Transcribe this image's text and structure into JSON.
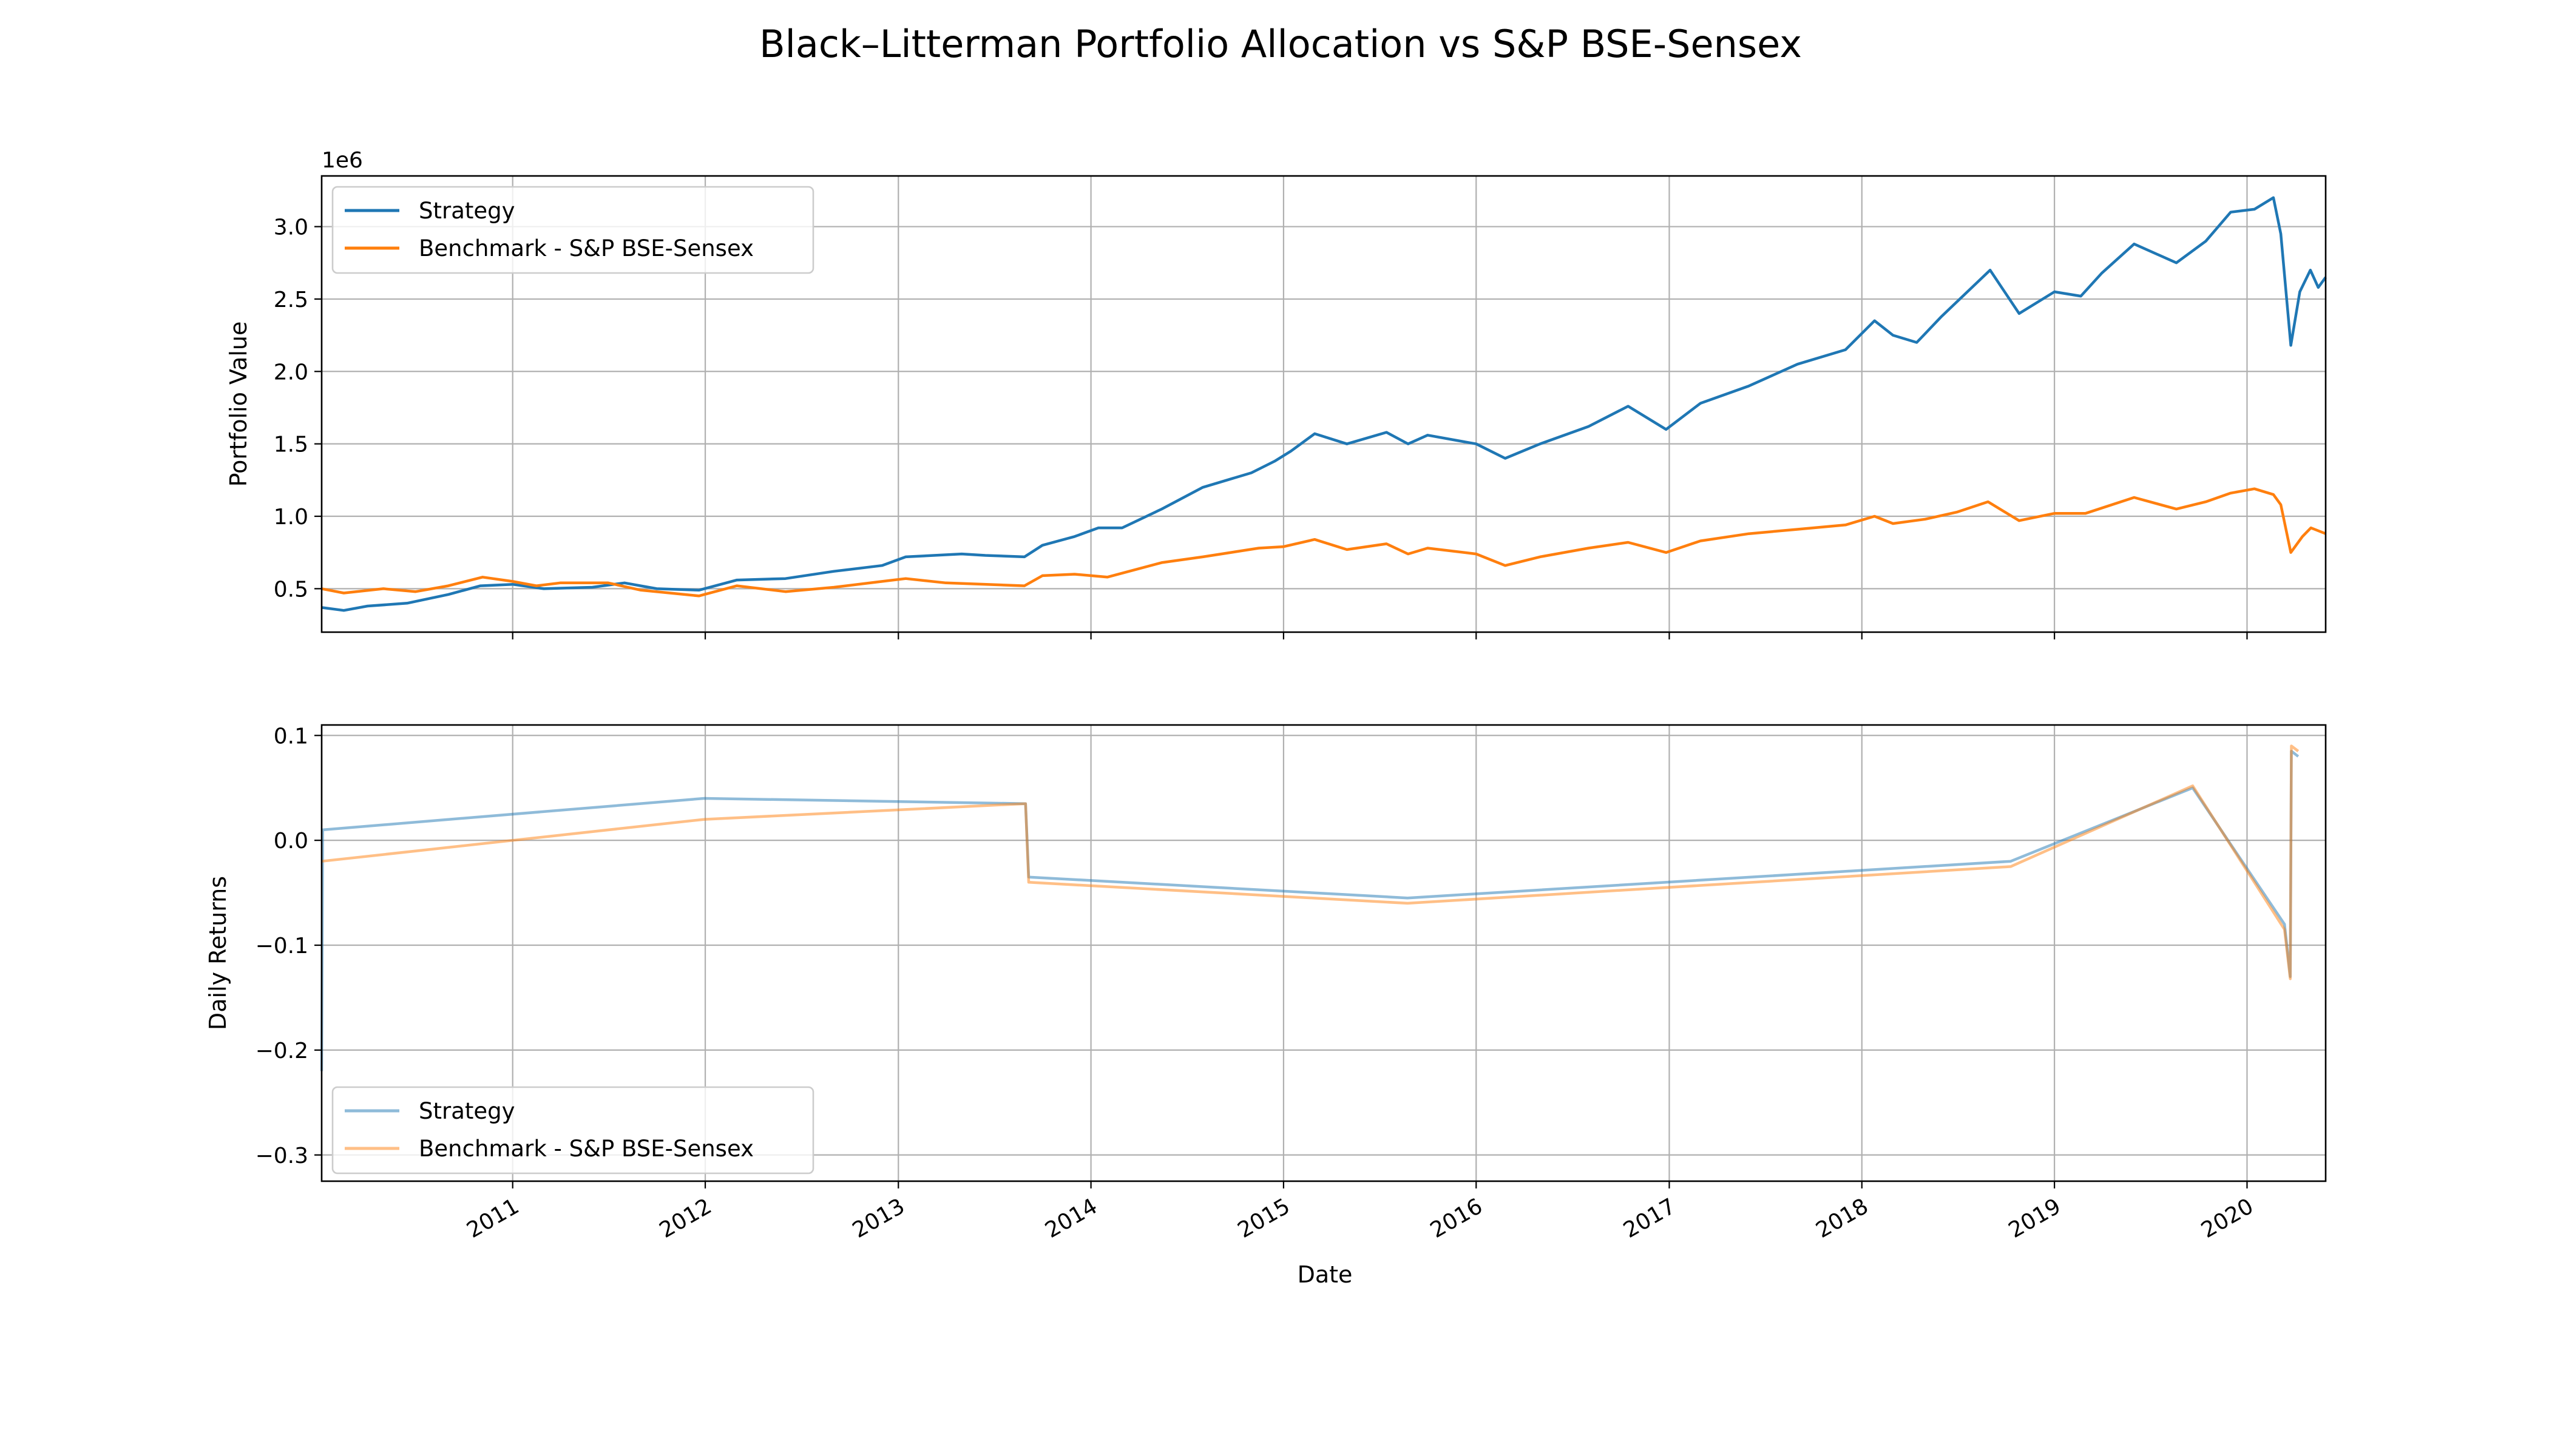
{
  "figure": {
    "title": "Black–Litterman Portfolio Allocation vs S&P BSE-Sensex"
  },
  "colors": {
    "strategy": "#1f77b4",
    "benchmark": "#ff7f0e",
    "grid": "#b0b0b0",
    "axes": "#000000"
  },
  "chart_data": [
    {
      "type": "line",
      "name": "portfolio-value",
      "ylabel": "Portfolio Value",
      "xlabel": "",
      "offset_label": "1e6",
      "xlim": [
        "2010-01-04",
        "2020-05-29"
      ],
      "ylim": [
        0.2,
        3.35
      ],
      "yticks": [
        0.5,
        1.0,
        1.5,
        2.0,
        2.5,
        3.0
      ],
      "ytick_labels": [
        "0.5",
        "1.0",
        "1.5",
        "2.0",
        "2.5",
        "3.0"
      ],
      "grid": true,
      "legend_position": "upper left",
      "series": [
        {
          "name": "Strategy",
          "color": "#1f77b4",
          "alpha": 1.0,
          "points": [
            [
              "2010-01-04",
              0.37
            ],
            [
              "2010-02-15",
              0.35
            ],
            [
              "2010-04-01",
              0.38
            ],
            [
              "2010-06-15",
              0.4
            ],
            [
              "2010-09-01",
              0.46
            ],
            [
              "2010-11-01",
              0.52
            ],
            [
              "2011-01-01",
              0.53
            ],
            [
              "2011-03-01",
              0.5
            ],
            [
              "2011-06-01",
              0.51
            ],
            [
              "2011-08-01",
              0.54
            ],
            [
              "2011-10-01",
              0.5
            ],
            [
              "2011-12-20",
              0.49
            ],
            [
              "2012-03-01",
              0.56
            ],
            [
              "2012-06-01",
              0.57
            ],
            [
              "2012-09-01",
              0.62
            ],
            [
              "2012-12-01",
              0.66
            ],
            [
              "2013-01-15",
              0.72
            ],
            [
              "2013-05-01",
              0.74
            ],
            [
              "2013-06-15",
              0.73
            ],
            [
              "2013-08-28",
              0.72
            ],
            [
              "2013-10-01",
              0.8
            ],
            [
              "2013-12-01",
              0.86
            ],
            [
              "2014-01-15",
              0.92
            ],
            [
              "2014-03-01",
              0.92
            ],
            [
              "2014-05-15",
              1.05
            ],
            [
              "2014-08-01",
              1.2
            ],
            [
              "2014-11-01",
              1.3
            ],
            [
              "2014-12-15",
              1.38
            ],
            [
              "2015-01-15",
              1.45
            ],
            [
              "2015-03-01",
              1.57
            ],
            [
              "2015-05-01",
              1.5
            ],
            [
              "2015-07-15",
              1.58
            ],
            [
              "2015-08-25",
              1.5
            ],
            [
              "2015-10-01",
              1.56
            ],
            [
              "2016-01-01",
              1.5
            ],
            [
              "2016-02-25",
              1.4
            ],
            [
              "2016-05-01",
              1.5
            ],
            [
              "2016-08-01",
              1.62
            ],
            [
              "2016-10-15",
              1.76
            ],
            [
              "2016-12-26",
              1.6
            ],
            [
              "2017-03-01",
              1.78
            ],
            [
              "2017-06-01",
              1.9
            ],
            [
              "2017-09-01",
              2.05
            ],
            [
              "2017-12-01",
              2.15
            ],
            [
              "2018-01-25",
              2.35
            ],
            [
              "2018-03-01",
              2.25
            ],
            [
              "2018-04-15",
              2.2
            ],
            [
              "2018-06-01",
              2.38
            ],
            [
              "2018-09-01",
              2.7
            ],
            [
              "2018-10-26",
              2.4
            ],
            [
              "2019-01-01",
              2.55
            ],
            [
              "2019-02-20",
              2.52
            ],
            [
              "2019-04-01",
              2.68
            ],
            [
              "2019-06-01",
              2.88
            ],
            [
              "2019-08-20",
              2.75
            ],
            [
              "2019-10-15",
              2.9
            ],
            [
              "2019-12-01",
              3.1
            ],
            [
              "2020-01-15",
              3.12
            ],
            [
              "2020-02-20",
              3.2
            ],
            [
              "2020-03-05",
              2.95
            ],
            [
              "2020-03-24",
              2.18
            ],
            [
              "2020-04-10",
              2.55
            ],
            [
              "2020-04-30",
              2.7
            ],
            [
              "2020-05-15",
              2.58
            ],
            [
              "2020-05-29",
              2.65
            ]
          ]
        },
        {
          "name": "Benchmark - S&P BSE-Sensex",
          "color": "#ff7f0e",
          "alpha": 1.0,
          "points": [
            [
              "2010-01-04",
              0.5
            ],
            [
              "2010-02-15",
              0.47
            ],
            [
              "2010-05-01",
              0.5
            ],
            [
              "2010-07-01",
              0.48
            ],
            [
              "2010-09-01",
              0.52
            ],
            [
              "2010-11-05",
              0.58
            ],
            [
              "2011-01-01",
              0.55
            ],
            [
              "2011-02-15",
              0.52
            ],
            [
              "2011-04-01",
              0.54
            ],
            [
              "2011-07-01",
              0.54
            ],
            [
              "2011-09-01",
              0.49
            ],
            [
              "2011-12-20",
              0.45
            ],
            [
              "2012-03-01",
              0.52
            ],
            [
              "2012-06-01",
              0.48
            ],
            [
              "2012-09-01",
              0.51
            ],
            [
              "2012-12-01",
              0.55
            ],
            [
              "2013-01-15",
              0.57
            ],
            [
              "2013-04-01",
              0.54
            ],
            [
              "2013-08-28",
              0.52
            ],
            [
              "2013-10-01",
              0.59
            ],
            [
              "2013-12-01",
              0.6
            ],
            [
              "2014-02-01",
              0.58
            ],
            [
              "2014-05-15",
              0.68
            ],
            [
              "2014-08-01",
              0.72
            ],
            [
              "2014-11-15",
              0.78
            ],
            [
              "2015-01-01",
              0.79
            ],
            [
              "2015-03-01",
              0.84
            ],
            [
              "2015-05-01",
              0.77
            ],
            [
              "2015-07-15",
              0.81
            ],
            [
              "2015-08-25",
              0.74
            ],
            [
              "2015-10-01",
              0.78
            ],
            [
              "2016-01-01",
              0.74
            ],
            [
              "2016-02-25",
              0.66
            ],
            [
              "2016-05-01",
              0.72
            ],
            [
              "2016-08-01",
              0.78
            ],
            [
              "2016-10-15",
              0.82
            ],
            [
              "2016-12-26",
              0.75
            ],
            [
              "2017-03-01",
              0.83
            ],
            [
              "2017-06-01",
              0.88
            ],
            [
              "2017-09-01",
              0.91
            ],
            [
              "2017-12-01",
              0.94
            ],
            [
              "2018-01-25",
              1.0
            ],
            [
              "2018-03-01",
              0.95
            ],
            [
              "2018-05-01",
              0.98
            ],
            [
              "2018-07-01",
              1.03
            ],
            [
              "2018-08-28",
              1.1
            ],
            [
              "2018-10-26",
              0.97
            ],
            [
              "2019-01-01",
              1.02
            ],
            [
              "2019-03-01",
              1.02
            ],
            [
              "2019-06-01",
              1.13
            ],
            [
              "2019-08-20",
              1.05
            ],
            [
              "2019-10-15",
              1.1
            ],
            [
              "2019-12-01",
              1.16
            ],
            [
              "2020-01-15",
              1.19
            ],
            [
              "2020-02-20",
              1.15
            ],
            [
              "2020-03-05",
              1.08
            ],
            [
              "2020-03-24",
              0.75
            ],
            [
              "2020-04-15",
              0.86
            ],
            [
              "2020-05-01",
              0.92
            ],
            [
              "2020-05-29",
              0.88
            ]
          ]
        }
      ]
    },
    {
      "type": "line",
      "name": "daily-returns",
      "ylabel": "Daily Returns",
      "xlabel": "Date",
      "xlim": [
        "2010-01-04",
        "2020-05-29"
      ],
      "ylim": [
        -0.325,
        0.11
      ],
      "yticks": [
        -0.3,
        -0.2,
        -0.1,
        0.0,
        0.1
      ],
      "ytick_labels": [
        "−0.3",
        "−0.2",
        "−0.1",
        "0.0",
        "0.1"
      ],
      "xticks": [
        "2011-01-01",
        "2012-01-01",
        "2013-01-01",
        "2014-01-01",
        "2015-01-01",
        "2016-01-01",
        "2017-01-01",
        "2018-01-01",
        "2019-01-01",
        "2020-01-01"
      ],
      "xtick_labels": [
        "2011",
        "2012",
        "2013",
        "2014",
        "2015",
        "2016",
        "2017",
        "2018",
        "2019",
        "2020"
      ],
      "grid": true,
      "legend_position": "lower left",
      "series": [
        {
          "name": "Strategy",
          "color": "#1f77b4",
          "alpha": 0.5,
          "points": [
            [
              "2010-01-04",
              -0.22
            ],
            [
              "2010-01-06",
              0.01
            ],
            [
              "2011-12-30",
              0.04
            ],
            [
              "2013-08-30",
              0.035
            ],
            [
              "2013-09-05",
              -0.035
            ],
            [
              "2015-08-24",
              -0.055
            ],
            [
              "2018-10-10",
              -0.02
            ],
            [
              "2019-09-20",
              0.05
            ],
            [
              "2020-03-12",
              -0.08
            ],
            [
              "2020-03-23",
              -0.13
            ],
            [
              "2020-03-25",
              0.085
            ],
            [
              "2020-04-07",
              0.08
            ]
          ]
        },
        {
          "name": "Benchmark - S&P BSE-Sensex",
          "color": "#ff7f0e",
          "alpha": 0.5,
          "points": [
            [
              "2010-01-04",
              -0.02
            ],
            [
              "2011-12-30",
              0.02
            ],
            [
              "2013-08-30",
              0.035
            ],
            [
              "2013-09-05",
              -0.04
            ],
            [
              "2015-08-24",
              -0.06
            ],
            [
              "2018-10-10",
              -0.025
            ],
            [
              "2019-09-20",
              0.052
            ],
            [
              "2020-03-12",
              -0.085
            ],
            [
              "2020-03-23",
              -0.132
            ],
            [
              "2020-03-25",
              0.09
            ],
            [
              "2020-04-07",
              0.085
            ]
          ]
        }
      ]
    }
  ]
}
